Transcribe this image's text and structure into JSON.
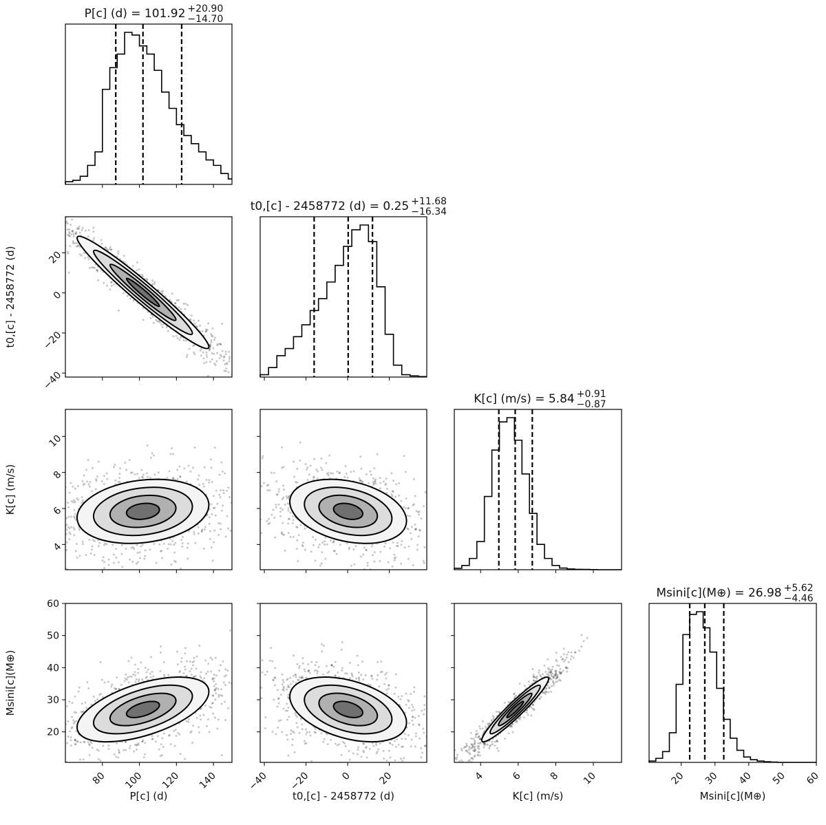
{
  "chart_data": {
    "type": "corner",
    "parameters": [
      {
        "key": "P",
        "axis_label": "P[c] (d)",
        "title": "P[c] (d) = 101.92 +20.90 −14.70",
        "title_main": "P[c] (d) = 101.92",
        "title_plus": "+20.90",
        "title_minus": "−14.70",
        "median": 101.92,
        "err_plus": 20.9,
        "err_minus": 14.7,
        "range": [
          60,
          150
        ],
        "ticks": [
          80,
          100,
          120,
          140
        ],
        "hist_edges": [
          60,
          64,
          68,
          72,
          76,
          80,
          84,
          88,
          92,
          96,
          100,
          104,
          108,
          112,
          116,
          120,
          124,
          128,
          132,
          136,
          140,
          144,
          148,
          150
        ],
        "hist_counts": [
          1,
          1.5,
          3,
          7,
          12,
          35,
          43,
          48,
          56,
          55,
          51,
          48,
          42,
          34,
          28,
          22,
          18,
          15,
          12,
          9,
          7,
          4,
          2
        ]
      },
      {
        "key": "t0",
        "axis_label": "t0,[c] - 2458772 (d)",
        "title": "t0,[c] - 2458772 (d) = 0.25 +11.68 −16.34",
        "title_main": "t0,[c] - 2458772 (d) = 0.25",
        "title_plus": "+11.68",
        "title_minus": "−16.34",
        "median": 0.25,
        "err_plus": 11.68,
        "err_minus": 16.34,
        "range": [
          -42,
          38
        ],
        "ticks": [
          -40,
          -20,
          0,
          20
        ],
        "hist_edges": [
          -42,
          -38,
          -34,
          -30,
          -26,
          -22,
          -18,
          -14,
          -10,
          -6,
          -2,
          2,
          6,
          10,
          14,
          18,
          22,
          26,
          30,
          34,
          38
        ],
        "hist_counts": [
          1,
          4,
          9,
          12,
          17,
          22,
          28,
          33,
          40,
          47,
          55,
          62,
          64,
          57,
          38,
          18,
          5,
          1,
          0.5,
          0.2
        ]
      },
      {
        "key": "K",
        "axis_label": "K[c] (m/s)",
        "title": "K[c] (m/s) = 5.84 +0.91 −0.87",
        "title_main": "K[c] (m/s) = 5.84",
        "title_plus": "+0.91",
        "title_minus": "−0.87",
        "median": 5.84,
        "err_plus": 0.91,
        "err_minus": 0.87,
        "range": [
          2.6,
          11.5
        ],
        "ticks": [
          4,
          6,
          8,
          10
        ],
        "hist_edges": [
          2.6,
          3.0,
          3.4,
          3.8,
          4.2,
          4.6,
          5.0,
          5.4,
          5.8,
          6.2,
          6.6,
          7.0,
          7.4,
          7.8,
          8.2,
          8.6,
          9.0,
          9.4,
          9.8,
          10.2,
          11.5
        ],
        "hist_counts": [
          1,
          3,
          8,
          20,
          52,
          85,
          105,
          108,
          92,
          68,
          40,
          18,
          8,
          3,
          1.2,
          0.5,
          0.3,
          0.2,
          0.1,
          0
        ]
      },
      {
        "key": "Msini",
        "axis_label": "Msini[c](M⊕)",
        "title": "Msini[c](M⊕) = 26.98 +5.62 −4.46",
        "title_main": "Msini[c](M⊕) = 26.98",
        "title_plus": "+5.62",
        "title_minus": "−4.46",
        "median": 26.98,
        "err_plus": 5.62,
        "err_minus": 4.46,
        "range": [
          10.5,
          60
        ],
        "ticks": [
          20,
          30,
          40,
          50,
          60
        ],
        "hist_edges": [
          10.5,
          12.5,
          14.5,
          16.5,
          18.5,
          20.5,
          22.5,
          24.5,
          26.5,
          28.5,
          30.5,
          32.5,
          34.5,
          36.5,
          38.5,
          40.5,
          42.5,
          44.5,
          46.5,
          48.5,
          60
        ],
        "hist_counts": [
          1,
          3,
          8,
          22,
          58,
          95,
          110,
          112,
          100,
          82,
          55,
          32,
          18,
          9,
          4,
          2,
          1,
          0.5,
          0.2,
          0
        ]
      }
    ],
    "pairs": [
      {
        "x": "P",
        "y": "t0",
        "correlation": -0.97
      },
      {
        "x": "P",
        "y": "K",
        "correlation": 0.2
      },
      {
        "x": "t0",
        "y": "K",
        "correlation": -0.3
      },
      {
        "x": "P",
        "y": "Msini",
        "correlation": 0.55
      },
      {
        "x": "t0",
        "y": "Msini",
        "correlation": -0.4
      },
      {
        "x": "K",
        "y": "Msini",
        "correlation": 0.95
      }
    ],
    "quantile_lines": "16th, 50th, 84th percentiles (dashed)",
    "levels": [
      "0.5σ",
      "1σ",
      "1.5σ",
      "2σ"
    ]
  }
}
